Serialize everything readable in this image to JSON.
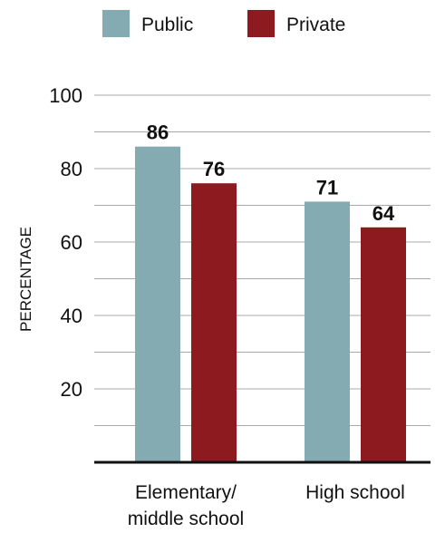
{
  "chart_data": {
    "type": "bar",
    "categories": [
      [
        "Elementary/",
        "middle school"
      ],
      [
        "High school"
      ]
    ],
    "series": [
      {
        "name": "Public",
        "color": "#84abb2",
        "values": [
          86,
          71
        ]
      },
      {
        "name": "Private",
        "color": "#8c1a1e",
        "values": [
          76,
          64
        ]
      }
    ],
    "ylabel": "PERCENTAGE",
    "ylim": [
      0,
      100
    ],
    "yticks": [
      20,
      40,
      60,
      80,
      100
    ],
    "grid": true,
    "legend": "top"
  }
}
